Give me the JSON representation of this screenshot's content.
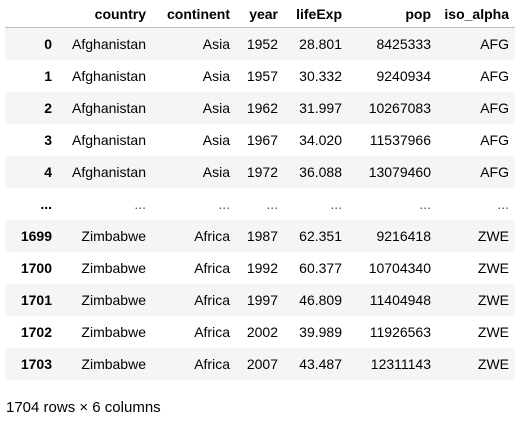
{
  "table": {
    "columns": [
      "",
      "country",
      "continent",
      "year",
      "lifeExp",
      "pop",
      "iso_alpha"
    ],
    "rows": [
      {
        "index": "0",
        "country": "Afghanistan",
        "continent": "Asia",
        "year": "1952",
        "lifeExp": "28.801",
        "pop": "8425333",
        "iso_alpha": "AFG"
      },
      {
        "index": "1",
        "country": "Afghanistan",
        "continent": "Asia",
        "year": "1957",
        "lifeExp": "30.332",
        "pop": "9240934",
        "iso_alpha": "AFG"
      },
      {
        "index": "2",
        "country": "Afghanistan",
        "continent": "Asia",
        "year": "1962",
        "lifeExp": "31.997",
        "pop": "10267083",
        "iso_alpha": "AFG"
      },
      {
        "index": "3",
        "country": "Afghanistan",
        "continent": "Asia",
        "year": "1967",
        "lifeExp": "34.020",
        "pop": "11537966",
        "iso_alpha": "AFG"
      },
      {
        "index": "4",
        "country": "Afghanistan",
        "continent": "Asia",
        "year": "1972",
        "lifeExp": "36.088",
        "pop": "13079460",
        "iso_alpha": "AFG"
      },
      {
        "index": "...",
        "country": "...",
        "continent": "...",
        "year": "...",
        "lifeExp": "...",
        "pop": "...",
        "iso_alpha": "..."
      },
      {
        "index": "1699",
        "country": "Zimbabwe",
        "continent": "Africa",
        "year": "1987",
        "lifeExp": "62.351",
        "pop": "9216418",
        "iso_alpha": "ZWE"
      },
      {
        "index": "1700",
        "country": "Zimbabwe",
        "continent": "Africa",
        "year": "1992",
        "lifeExp": "60.377",
        "pop": "10704340",
        "iso_alpha": "ZWE"
      },
      {
        "index": "1701",
        "country": "Zimbabwe",
        "continent": "Africa",
        "year": "1997",
        "lifeExp": "46.809",
        "pop": "11404948",
        "iso_alpha": "ZWE"
      },
      {
        "index": "1702",
        "country": "Zimbabwe",
        "continent": "Africa",
        "year": "2002",
        "lifeExp": "39.989",
        "pop": "11926563",
        "iso_alpha": "ZWE"
      },
      {
        "index": "1703",
        "country": "Zimbabwe",
        "continent": "Africa",
        "year": "2007",
        "lifeExp": "43.487",
        "pop": "12311143",
        "iso_alpha": "ZWE"
      }
    ]
  },
  "shape_text": "1704 rows × 6 columns",
  "colors": {
    "stripe": "#f5f5f5",
    "header_rule": "#bdbdbd"
  }
}
